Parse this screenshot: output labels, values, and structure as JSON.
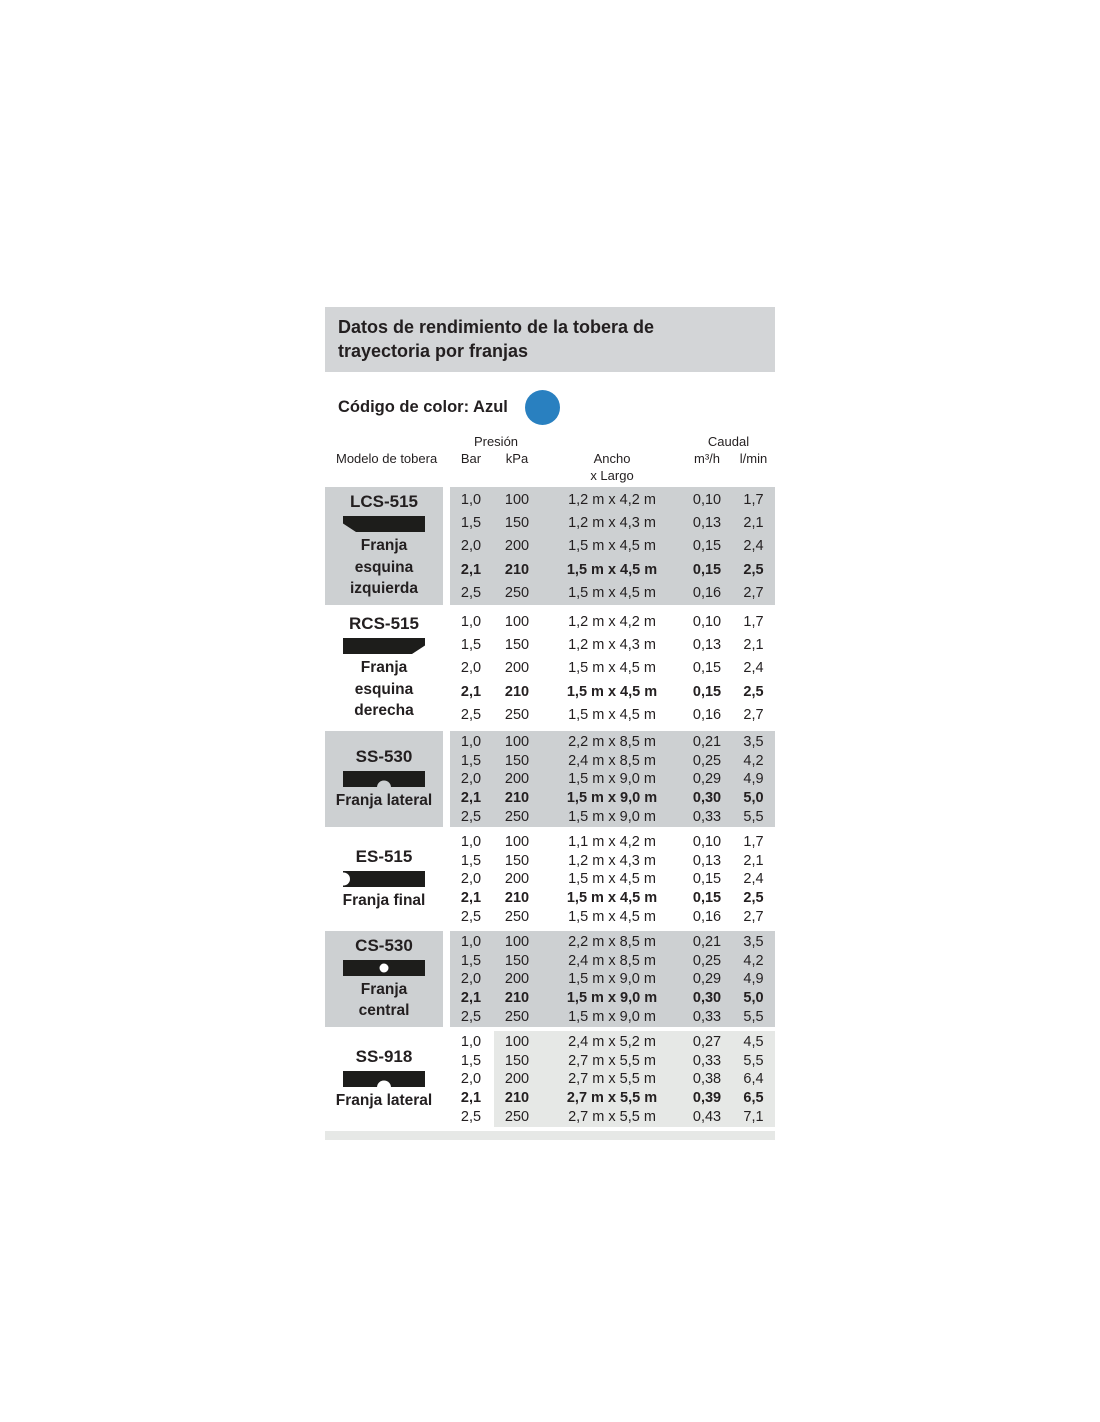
{
  "panel": {
    "title": "Datos de rendimiento de la tobera de trayectoria por franjas",
    "color_code_label": "Código de color: Azul",
    "color_code_hex": "#2980c0"
  },
  "table": {
    "headers": {
      "model": "Modelo de tobera",
      "pressure_group": "Presión",
      "pressure_bar": "Bar",
      "pressure_kpa": "kPa",
      "size_line1": "Ancho",
      "size_line2": "x Largo",
      "flow_group": "Caudal",
      "flow_m3h": "m³/h",
      "flow_lmin": "l/min"
    },
    "models": [
      {
        "name": "LCS-515",
        "icon": "left-corner-strip-icon",
        "desc_lines": [
          "Franja",
          "esquina",
          "izquierda"
        ],
        "rows": [
          {
            "bar": "1,0",
            "kpa": "100",
            "size": "1,2 m x 4,2 m",
            "m3h": "0,10",
            "lmin": "1,7",
            "bold": false
          },
          {
            "bar": "1,5",
            "kpa": "150",
            "size": "1,2 m x 4,3 m",
            "m3h": "0,13",
            "lmin": "2,1",
            "bold": false
          },
          {
            "bar": "2,0",
            "kpa": "200",
            "size": "1,5 m x 4,5 m",
            "m3h": "0,15",
            "lmin": "2,4",
            "bold": false
          },
          {
            "bar": "2,1",
            "kpa": "210",
            "size": "1,5 m x 4,5 m",
            "m3h": "0,15",
            "lmin": "2,5",
            "bold": true
          },
          {
            "bar": "2,5",
            "kpa": "250",
            "size": "1,5 m x 4,5 m",
            "m3h": "0,16",
            "lmin": "2,7",
            "bold": false
          }
        ]
      },
      {
        "name": "RCS-515",
        "icon": "right-corner-strip-icon",
        "desc_lines": [
          "Franja",
          "esquina",
          "derecha"
        ],
        "rows": [
          {
            "bar": "1,0",
            "kpa": "100",
            "size": "1,2 m x 4,2 m",
            "m3h": "0,10",
            "lmin": "1,7",
            "bold": false
          },
          {
            "bar": "1,5",
            "kpa": "150",
            "size": "1,2 m x 4,3 m",
            "m3h": "0,13",
            "lmin": "2,1",
            "bold": false
          },
          {
            "bar": "2,0",
            "kpa": "200",
            "size": "1,5 m x 4,5 m",
            "m3h": "0,15",
            "lmin": "2,4",
            "bold": false
          },
          {
            "bar": "2,1",
            "kpa": "210",
            "size": "1,5 m x 4,5 m",
            "m3h": "0,15",
            "lmin": "2,5",
            "bold": true
          },
          {
            "bar": "2,5",
            "kpa": "250",
            "size": "1,5 m x 4,5 m",
            "m3h": "0,16",
            "lmin": "2,7",
            "bold": false
          }
        ]
      },
      {
        "name": "SS-530",
        "icon": "side-strip-icon",
        "desc_lines": [
          "Franja lateral"
        ],
        "rows": [
          {
            "bar": "1,0",
            "kpa": "100",
            "size": "2,2 m x 8,5 m",
            "m3h": "0,21",
            "lmin": "3,5",
            "bold": false
          },
          {
            "bar": "1,5",
            "kpa": "150",
            "size": "2,4 m x 8,5 m",
            "m3h": "0,25",
            "lmin": "4,2",
            "bold": false
          },
          {
            "bar": "2,0",
            "kpa": "200",
            "size": "1,5 m x 9,0 m",
            "m3h": "0,29",
            "lmin": "4,9",
            "bold": false
          },
          {
            "bar": "2,1",
            "kpa": "210",
            "size": "1,5 m x 9,0 m",
            "m3h": "0,30",
            "lmin": "5,0",
            "bold": true
          },
          {
            "bar": "2,5",
            "kpa": "250",
            "size": "1,5 m x 9,0 m",
            "m3h": "0,33",
            "lmin": "5,5",
            "bold": false
          }
        ]
      },
      {
        "name": "ES-515",
        "icon": "end-strip-icon",
        "desc_lines": [
          "Franja final"
        ],
        "rows": [
          {
            "bar": "1,0",
            "kpa": "100",
            "size": "1,1 m x 4,2 m",
            "m3h": "0,10",
            "lmin": "1,7",
            "bold": false
          },
          {
            "bar": "1,5",
            "kpa": "150",
            "size": "1,2 m x 4,3 m",
            "m3h": "0,13",
            "lmin": "2,1",
            "bold": false
          },
          {
            "bar": "2,0",
            "kpa": "200",
            "size": "1,5 m x 4,5 m",
            "m3h": "0,15",
            "lmin": "2,4",
            "bold": false
          },
          {
            "bar": "2,1",
            "kpa": "210",
            "size": "1,5 m x 4,5 m",
            "m3h": "0,15",
            "lmin": "2,5",
            "bold": true
          },
          {
            "bar": "2,5",
            "kpa": "250",
            "size": "1,5 m x 4,5 m",
            "m3h": "0,16",
            "lmin": "2,7",
            "bold": false
          }
        ]
      },
      {
        "name": "CS-530",
        "icon": "center-strip-icon",
        "desc_lines": [
          "Franja",
          "central"
        ],
        "rows": [
          {
            "bar": "1,0",
            "kpa": "100",
            "size": "2,2 m x 8,5 m",
            "m3h": "0,21",
            "lmin": "3,5",
            "bold": false
          },
          {
            "bar": "1,5",
            "kpa": "150",
            "size": "2,4 m x 8,5 m",
            "m3h": "0,25",
            "lmin": "4,2",
            "bold": false
          },
          {
            "bar": "2,0",
            "kpa": "200",
            "size": "1,5 m x 9,0 m",
            "m3h": "0,29",
            "lmin": "4,9",
            "bold": false
          },
          {
            "bar": "2,1",
            "kpa": "210",
            "size": "1,5 m x 9,0 m",
            "m3h": "0,30",
            "lmin": "5,0",
            "bold": true
          },
          {
            "bar": "2,5",
            "kpa": "250",
            "size": "1,5 m x 9,0 m",
            "m3h": "0,33",
            "lmin": "5,5",
            "bold": false
          }
        ]
      },
      {
        "name": "SS-918",
        "icon": "side-strip-icon",
        "desc_lines": [
          "Franja lateral"
        ],
        "rows": [
          {
            "bar": "1,0",
            "kpa": "100",
            "size": "2,4 m x 5,2 m",
            "m3h": "0,27",
            "lmin": "4,5",
            "bold": false
          },
          {
            "bar": "1,5",
            "kpa": "150",
            "size": "2,7 m x 5,5 m",
            "m3h": "0,33",
            "lmin": "5,5",
            "bold": false
          },
          {
            "bar": "2,0",
            "kpa": "200",
            "size": "2,7 m x 5,5 m",
            "m3h": "0,38",
            "lmin": "6,4",
            "bold": false
          },
          {
            "bar": "2,1",
            "kpa": "210",
            "size": "2,7 m x 5,5 m",
            "m3h": "0,39",
            "lmin": "6,5",
            "bold": true
          },
          {
            "bar": "2,5",
            "kpa": "250",
            "size": "2,7 m x 5,5 m",
            "m3h": "0,43",
            "lmin": "7,1",
            "bold": false
          }
        ]
      }
    ]
  }
}
